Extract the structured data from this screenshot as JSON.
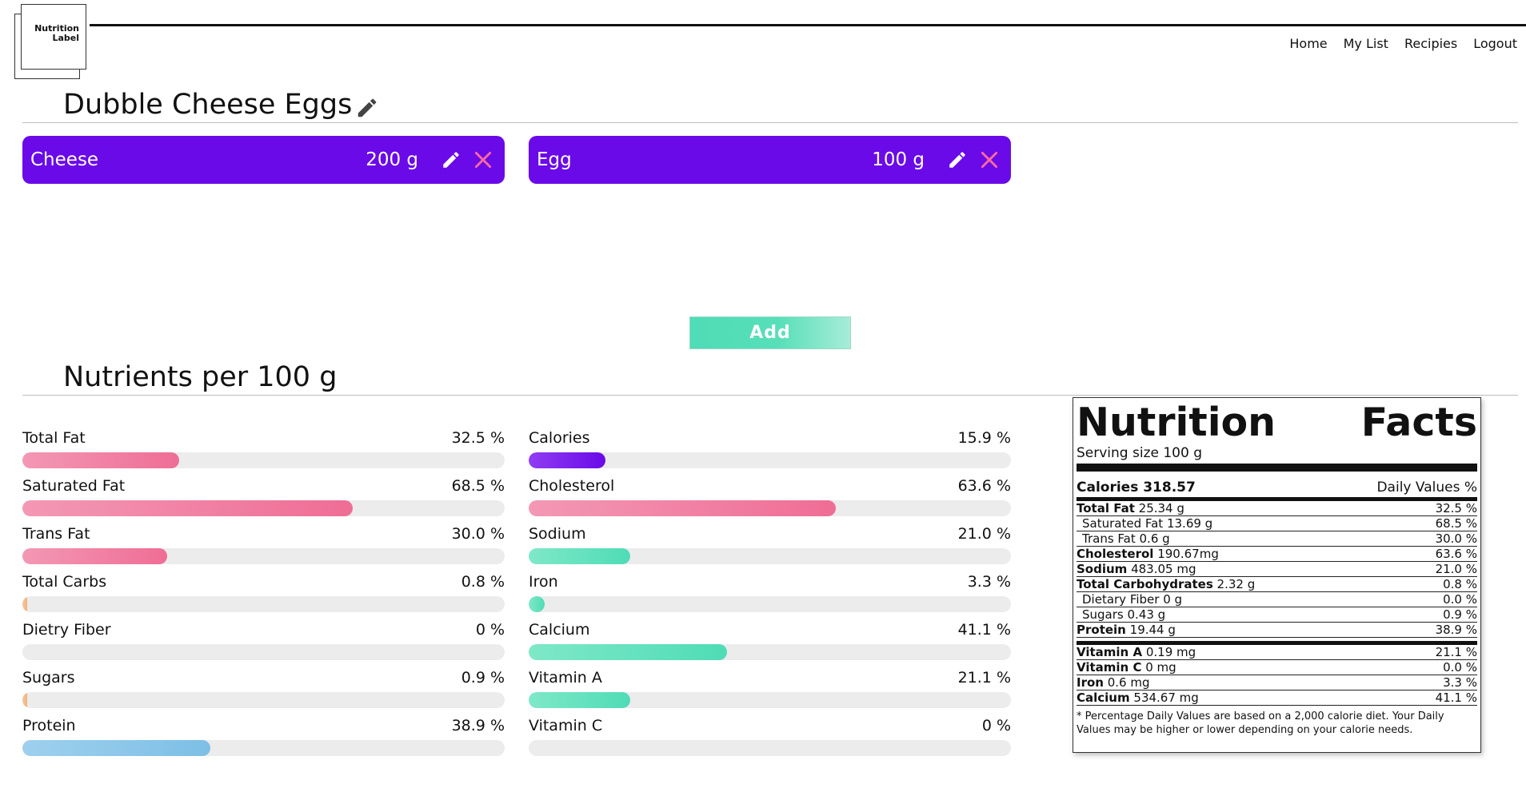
{
  "logo": {
    "line1": "Nutrition",
    "line2": "Label"
  },
  "nav": [
    {
      "label": "Home"
    },
    {
      "label": "My List"
    },
    {
      "label": "Recipies"
    },
    {
      "label": "Logout"
    }
  ],
  "recipe": {
    "title": "Dubble Cheese Eggs"
  },
  "ingredients": [
    {
      "name": "Cheese",
      "amount": "200 g"
    },
    {
      "name": "Egg",
      "amount": "100 g"
    }
  ],
  "add_button": {
    "label": "Add"
  },
  "nutrients_section": {
    "title": "Nutrients per 100 g"
  },
  "nutrients_left": [
    {
      "label": "Total Fat",
      "value_text": "32.5 %",
      "percent": 32.5,
      "color": "pink"
    },
    {
      "label": "Saturated Fat",
      "value_text": "68.5 %",
      "percent": 68.5,
      "color": "pink"
    },
    {
      "label": "Trans Fat",
      "value_text": "30.0 %",
      "percent": 30.0,
      "color": "pink"
    },
    {
      "label": "Total Carbs",
      "value_text": "0.8 %",
      "percent": 0.8,
      "color": "peach"
    },
    {
      "label": "Dietry Fiber",
      "value_text": "0 %",
      "percent": 0,
      "color": "peach"
    },
    {
      "label": "Sugars",
      "value_text": "0.9 %",
      "percent": 0.9,
      "color": "peach"
    },
    {
      "label": "Protein",
      "value_text": "38.9 %",
      "percent": 38.9,
      "color": "blue"
    }
  ],
  "nutrients_right": [
    {
      "label": "Calories",
      "value_text": "15.9 %",
      "percent": 15.9,
      "color": "purple"
    },
    {
      "label": "Cholesterol",
      "value_text": "63.6 %",
      "percent": 63.6,
      "color": "pink"
    },
    {
      "label": "Sodium",
      "value_text": "21.0 %",
      "percent": 21.0,
      "color": "green"
    },
    {
      "label": "Iron",
      "value_text": "3.3 %",
      "percent": 3.3,
      "color": "green"
    },
    {
      "label": "Calcium",
      "value_text": "41.1 %",
      "percent": 41.1,
      "color": "green"
    },
    {
      "label": "Vitamin A",
      "value_text": "21.1 %",
      "percent": 21.1,
      "color": "green"
    },
    {
      "label": "Vitamin C",
      "value_text": "0 %",
      "percent": 0,
      "color": "green"
    }
  ],
  "facts": {
    "title_left": "Nutrition",
    "title_right": "Facts",
    "serving": "Serving size 100 g",
    "calories_label": "Calories 318.57",
    "daily_values_label": "Daily Values %",
    "rows_main": [
      {
        "name": "Total Fat",
        "amount": "25.34 g",
        "pct": "32.5 %",
        "indent": false
      },
      {
        "name": "Saturated Fat",
        "amount": "13.69 g",
        "pct": "68.5 %",
        "indent": true
      },
      {
        "name": "Trans Fat",
        "amount": "0.6 g",
        "pct": "30.0 %",
        "indent": true
      },
      {
        "name": "Cholesterol",
        "amount": "190.67mg",
        "pct": "63.6 %",
        "indent": false
      },
      {
        "name": "Sodium",
        "amount": "483.05 mg",
        "pct": "21.0 %",
        "indent": false
      },
      {
        "name": "Total Carbohydrates",
        "amount": "2.32 g",
        "pct": "0.8 %",
        "indent": false
      },
      {
        "name": "Dietary Fiber",
        "amount": "0 g",
        "pct": "0.0 %",
        "indent": true
      },
      {
        "name": "Sugars",
        "amount": "0.43 g",
        "pct": "0.9 %",
        "indent": true
      },
      {
        "name": "Protein",
        "amount": "19.44 g",
        "pct": "38.9 %",
        "indent": false
      }
    ],
    "rows_minerals": [
      {
        "name": "Vitamin A",
        "amount": "0.19 mg",
        "pct": "21.1 %"
      },
      {
        "name": "Vitamin C",
        "amount": "0 mg",
        "pct": "0.0 %"
      },
      {
        "name": "Iron",
        "amount": "0.6 mg",
        "pct": "3.3 %"
      },
      {
        "name": "Calcium",
        "amount": "534.67 mg",
        "pct": "41.1 %"
      }
    ],
    "footnote": "* Percentage Daily Values are based on a 2,000 calorie diet. Your Daily Values may be higher or lower depending on your calorie needs."
  },
  "colors": {
    "ingredient_card": "#6a0ae8",
    "add_button": "#4fdcb6",
    "delete_icon": "#ff6b9d"
  }
}
